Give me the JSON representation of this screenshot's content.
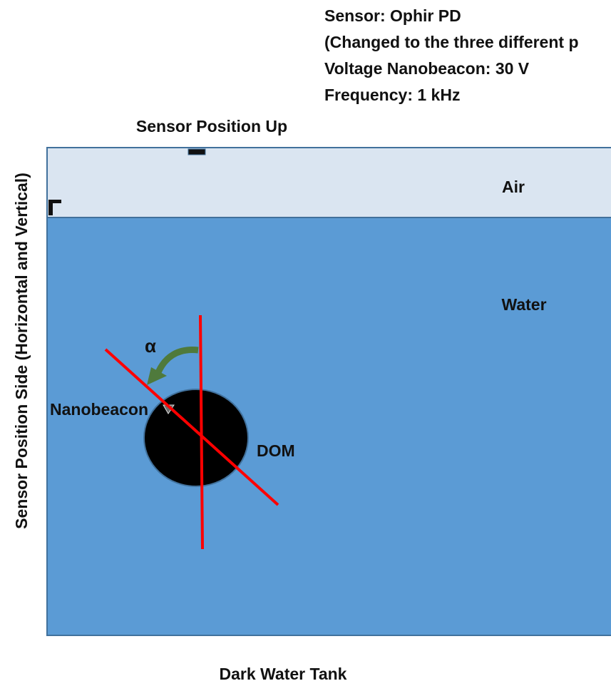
{
  "header": {
    "lines": [
      "Sensor: Ophir PD",
      "(Changed to the three different p",
      "Voltage Nanobeacon: 30 V",
      "Frequency: 1 kHz"
    ]
  },
  "labels": {
    "sensor_up": "Sensor Position Up",
    "sensor_side": "Sensor Position Side (Horizontal and Vertical)",
    "air": "Air",
    "water": "Water",
    "angle": "α",
    "nanobeacon": "Nanobeacon",
    "dom": "DOM",
    "tank": "Dark Water Tank"
  }
}
